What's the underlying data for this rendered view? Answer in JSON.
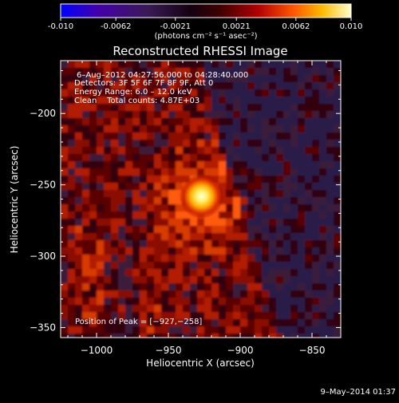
{
  "colorbar": {
    "ticks": [
      "-0.010",
      "-0.0062",
      "-0.0021",
      "0.0021",
      "0.0062",
      "0.010"
    ],
    "tick_values": [
      -0.01,
      -0.0062,
      -0.0021,
      0.0021,
      0.0062,
      0.01
    ],
    "range": [
      -0.01,
      0.01
    ],
    "units_label": "(photons cm⁻² s⁻¹ asec⁻²)",
    "colors": [
      "#0000ff",
      "#4400aa",
      "#3a1a55",
      "#140010",
      "#400000",
      "#b20000",
      "#ff5500",
      "#ffbb00",
      "#ffffcc"
    ]
  },
  "chart_data": {
    "type": "heatmap",
    "title": "Reconstructed RHESSI Image",
    "xlabel": "Heliocentric X (arcsec)",
    "ylabel": "Heliocentric Y (arcsec)",
    "xlim": [
      -1025,
      -830
    ],
    "ylim": [
      -357,
      -163
    ],
    "x_ticks": [
      -1000,
      -950,
      -900,
      -850
    ],
    "y_ticks": [
      -200,
      -250,
      -300,
      -350
    ],
    "x_tick_labels": [
      "−1000",
      "−950",
      "−900",
      "−850"
    ],
    "y_tick_labels": [
      "−200",
      "−250",
      "−300",
      "−350"
    ],
    "annotations": {
      "time_range": "6–Aug–2012 04:27:56.000 to 04:28:40.000",
      "detectors": "Detectors: 3F 5F 6F 7F 8F 9F, Att 0",
      "energy": "Energy Range: 6.0 – 12.0 keV",
      "clean": "Clean    Total counts: 4.87E+03",
      "peak": "Position of Peak = [−927,−258]"
    },
    "peak": [
      -927,
      -258
    ],
    "limb_curve_x_at_top": -931,
    "limb_curve_x_at_bottom": -875
  },
  "footer": {
    "timestamp": "9–May–2014 01:37"
  }
}
